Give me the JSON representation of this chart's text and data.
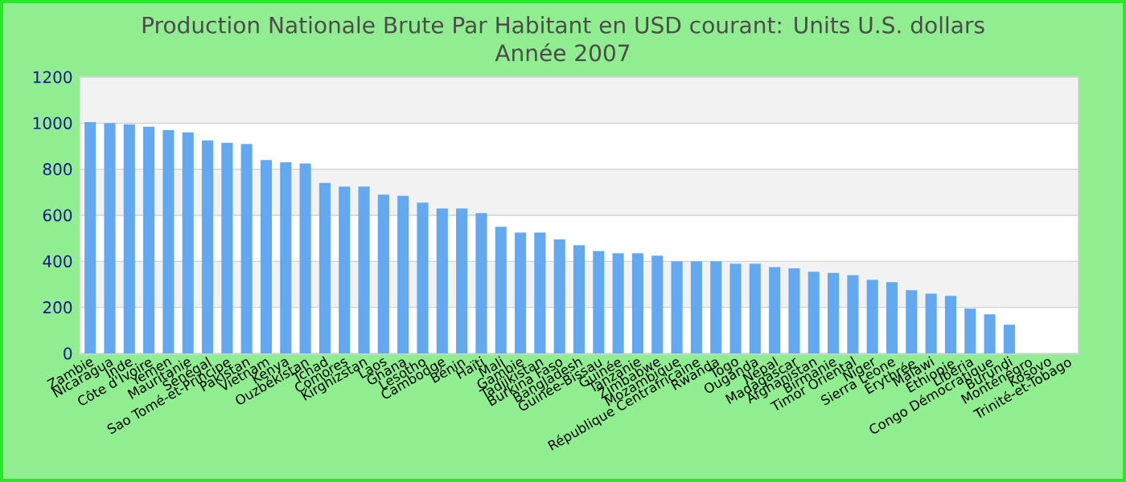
{
  "chart_data": {
    "type": "bar",
    "title": "Production Nationale Brute Par Habitant en USD courant: Units U.S. dollars",
    "subtitle": "Année 2007",
    "categories": [
      "Zambie",
      "Nicaragua",
      "Inde",
      "Côte d'Ivoire",
      "Yemen",
      "Mauritanie",
      "Sénégal",
      "Sao Tomé-et-Principe",
      "Pakistan",
      "Vietnam",
      "Kenya",
      "Ouzbékistan",
      "Tchad",
      "Comores",
      "Kirghizstan",
      "Laos",
      "Ghana",
      "Lesotho",
      "Cambodge",
      "Bénin",
      "Haïti",
      "Mali",
      "Gambie",
      "Tadjikistan",
      "Burkina Faso",
      "Bangladesh",
      "Guinée-Bissau",
      "Guinée",
      "Tanzanie",
      "Zimbabwe",
      "Mozambique",
      "République Centrafricaine",
      "Rwanda",
      "Togo",
      "Ouganda",
      "Népal",
      "Madagascar",
      "Afghanistan",
      "Birmanie",
      "Timor Oriental",
      "Niger",
      "Sierra Leone",
      "Érythrée",
      "Malawi",
      "Éthiopie",
      "Liberia",
      "Congo Démocratique",
      "Burundi",
      "Monténégro",
      "Kosovo",
      "Trinité-et-Tobago"
    ],
    "values": [
      1005,
      1000,
      995,
      985,
      970,
      960,
      925,
      915,
      910,
      840,
      830,
      825,
      740,
      725,
      725,
      690,
      685,
      655,
      630,
      630,
      610,
      550,
      525,
      525,
      495,
      470,
      445,
      435,
      435,
      425,
      400,
      400,
      400,
      390,
      390,
      375,
      370,
      355,
      350,
      340,
      320,
      310,
      275,
      260,
      250,
      195,
      170,
      125,
      null,
      null,
      null
    ],
    "color": "#63a9f2",
    "ylim": [
      0,
      1200
    ],
    "yticks": [
      0,
      200,
      400,
      600,
      800,
      1000,
      1200
    ],
    "grid": "y"
  }
}
